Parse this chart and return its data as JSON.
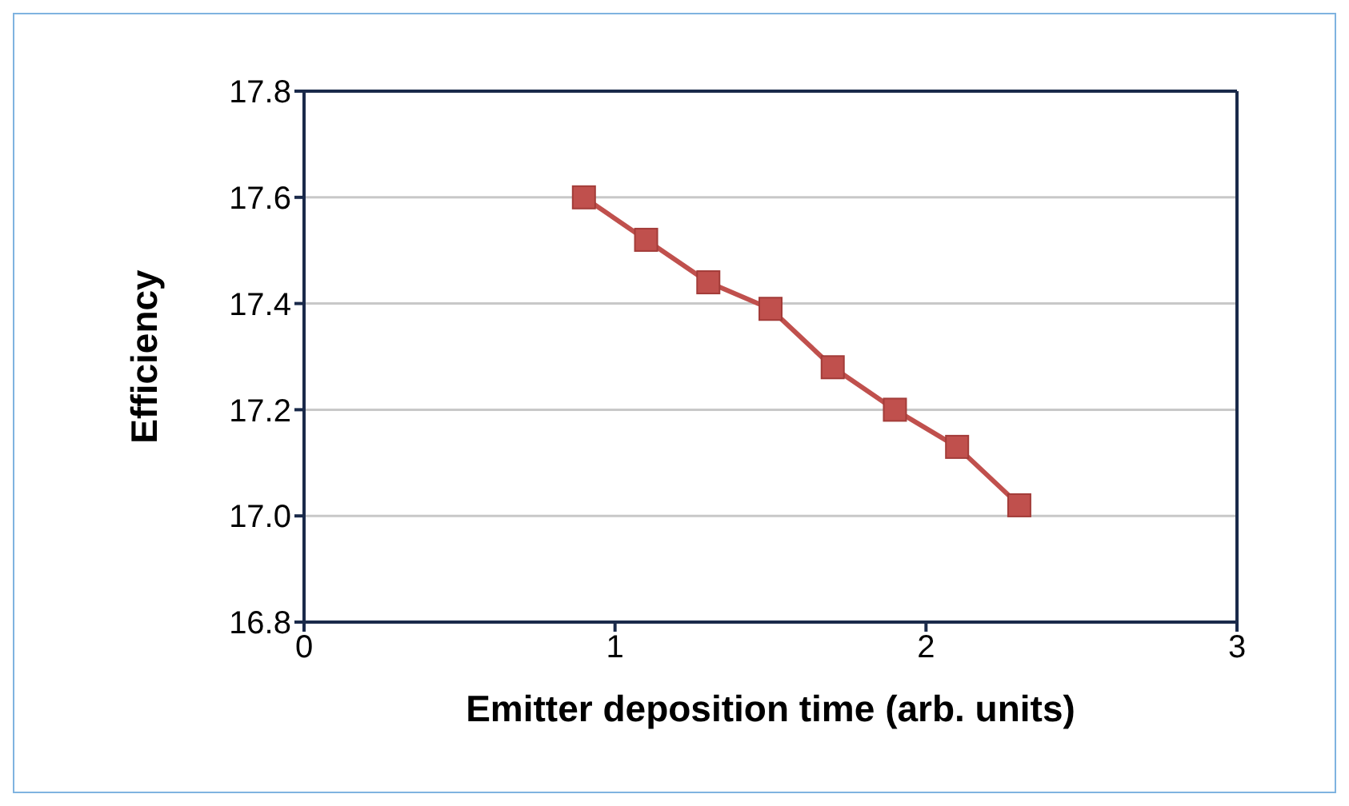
{
  "chart_data": {
    "type": "line",
    "xlabel": "Emitter deposition time (arb. units)",
    "ylabel": "Efficiency",
    "x": [
      0.9,
      1.1,
      1.3,
      1.5,
      1.7,
      1.9,
      2.1,
      2.3
    ],
    "series": [
      {
        "color": "#c0504d",
        "values": [
          17.6,
          17.52,
          17.44,
          17.39,
          17.28,
          17.2,
          17.13,
          17.02
        ]
      }
    ],
    "xlim": [
      0,
      3
    ],
    "xticks": [
      0,
      1,
      2,
      3
    ],
    "ylim": [
      16.8,
      17.8
    ],
    "yticks": [
      16.8,
      {
        "value": 17,
        "label": "17.0"
      },
      17.2,
      17.4,
      17.6,
      17.8
    ],
    "grid": "y",
    "legend": false,
    "marker": "square",
    "line_style": "solid"
  }
}
